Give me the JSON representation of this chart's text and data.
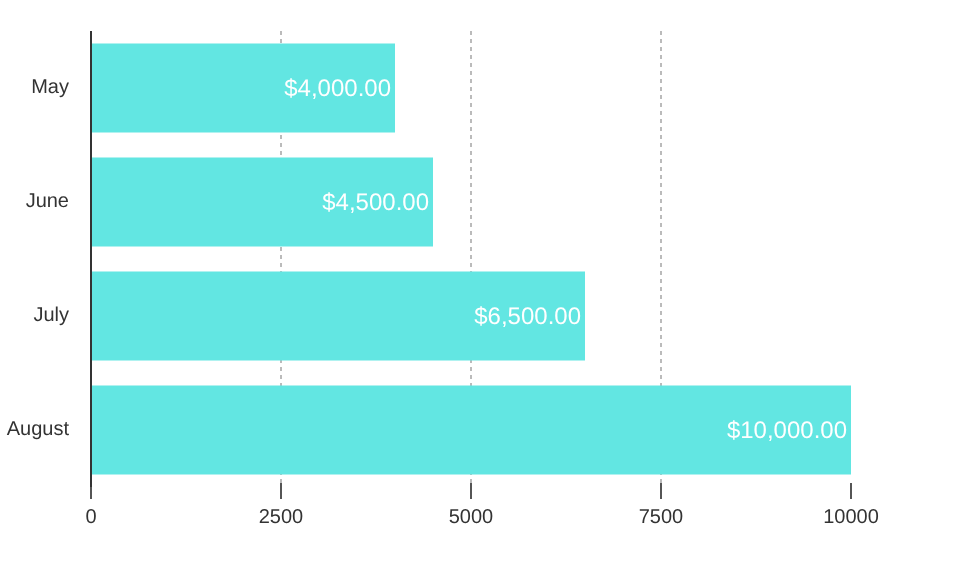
{
  "chart_data": {
    "type": "bar",
    "orientation": "horizontal",
    "categories": [
      "May",
      "June",
      "July",
      "August"
    ],
    "values": [
      4000,
      4500,
      6500,
      10000
    ],
    "value_labels": [
      "$4,000.00",
      "$4,500.00",
      "$6,500.00",
      "$10,000.00"
    ],
    "color": "#62e6e2",
    "xlim": [
      0,
      10000
    ],
    "xticks": [
      0,
      2500,
      5000,
      7500,
      10000
    ],
    "grid": "x"
  }
}
